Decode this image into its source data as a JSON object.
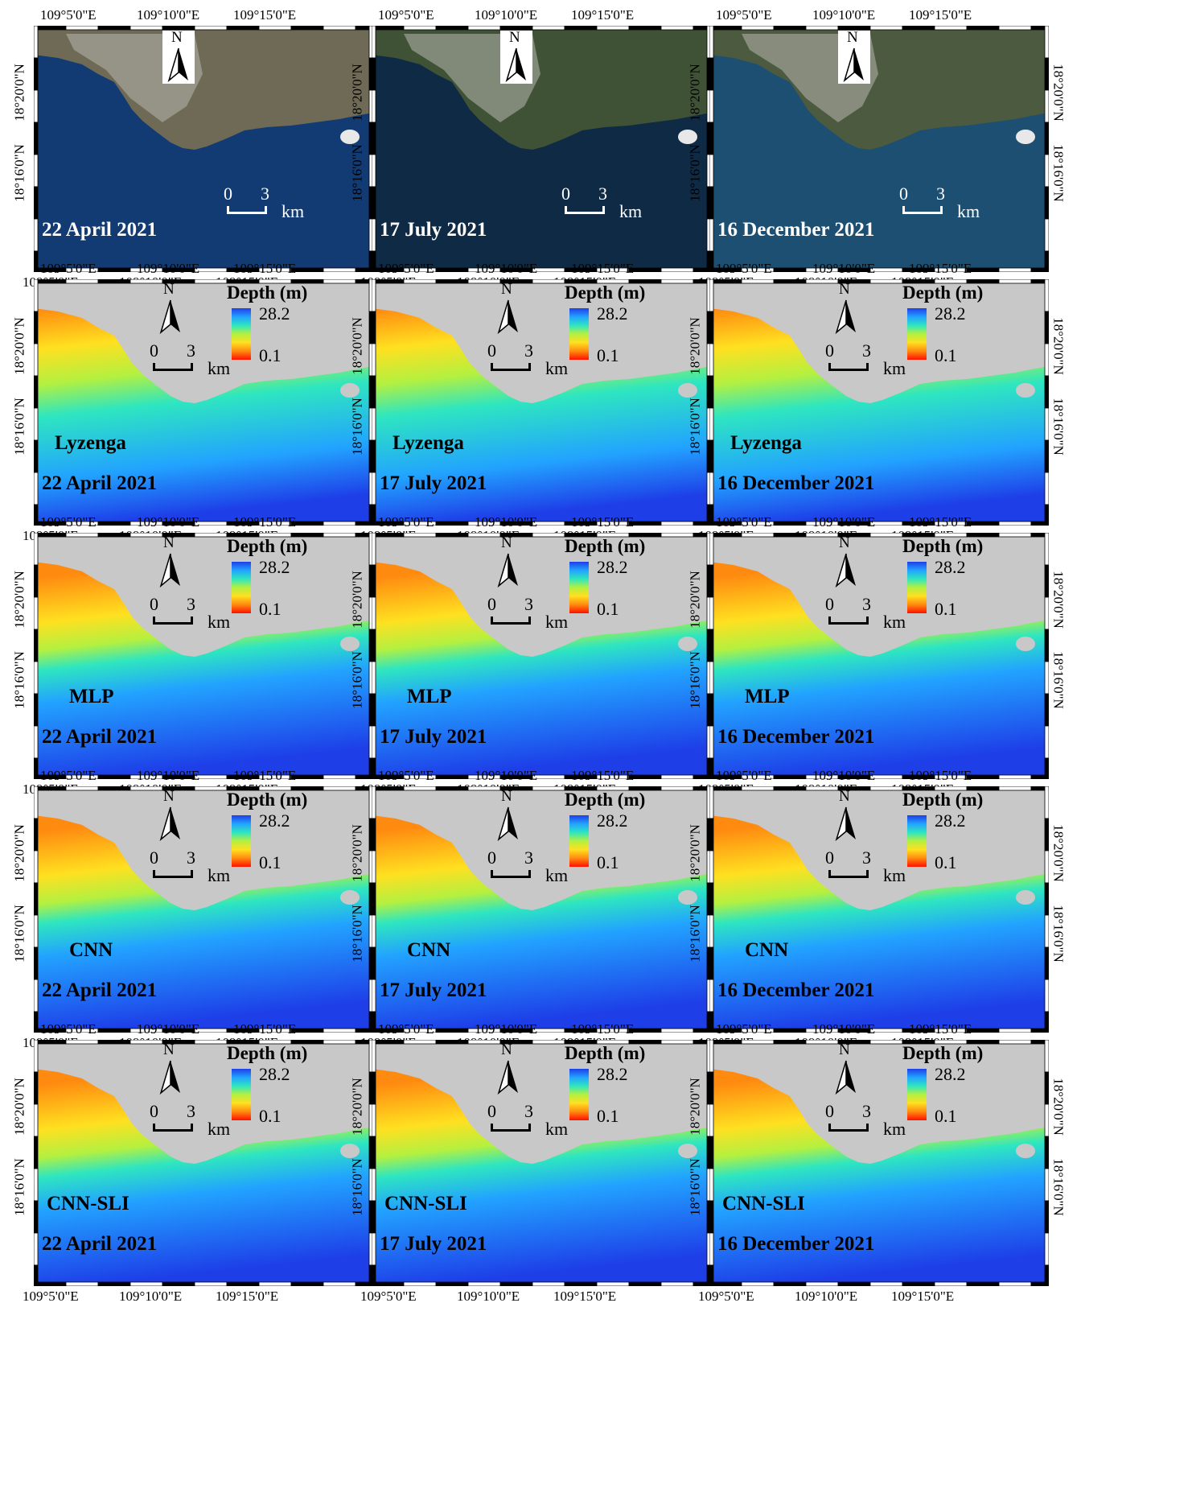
{
  "axes": {
    "x_ticks": [
      "109°5'0\"E",
      "109°10'0\"E",
      "109°15'0\"E"
    ],
    "y_ticks": [
      "18°20'0\"N",
      "18°16'0\"N"
    ]
  },
  "dates": [
    "22 April 2021",
    "17 July 2021",
    "16 December 2021"
  ],
  "rows": [
    {
      "type": "rgb",
      "method": ""
    },
    {
      "type": "depth",
      "method": "Lyzenga"
    },
    {
      "type": "depth",
      "method": "MLP"
    },
    {
      "type": "depth",
      "method": "CNN"
    },
    {
      "type": "depth",
      "method": "CNN-SLI"
    }
  ],
  "north_label": "N",
  "scale": {
    "zero": "0",
    "three": "3",
    "unit": "km"
  },
  "legend": {
    "title": "Depth (m)",
    "max": "28.2",
    "min": "0.1"
  },
  "colors": {
    "sea_rgb": [
      "#123a73",
      "#0f2a45",
      "#1d4f72"
    ],
    "land_rgb": [
      "#6e6a55",
      "#3f5236",
      "#4c5a40"
    ],
    "land_mask": "#c8c8c8",
    "depth_ramp": [
      "#ff1000",
      "#ff8a10",
      "#ffe020",
      "#b4f040",
      "#2ee6c0",
      "#22a3ff",
      "#1e3ee8"
    ]
  }
}
